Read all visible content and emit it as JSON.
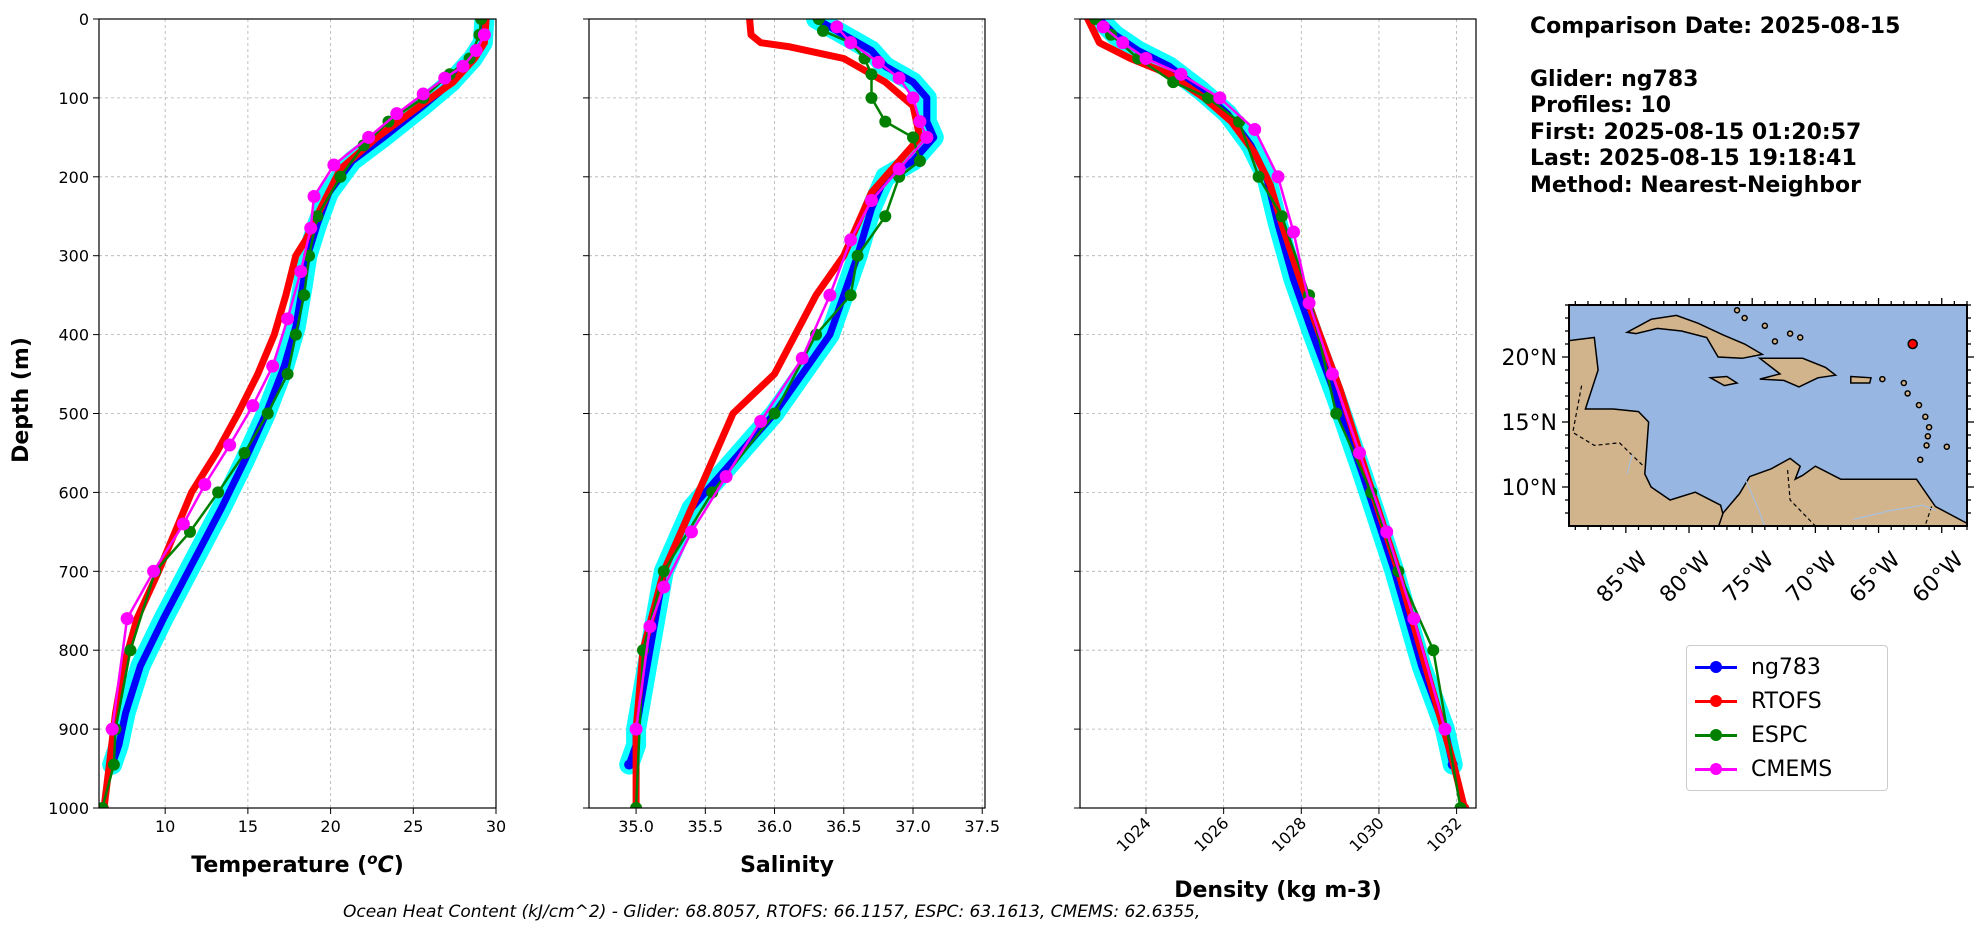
{
  "info": {
    "comparison_date": "Comparison Date: 2025-08-15",
    "glider": "Glider: ng783",
    "profiles": "Profiles: 10",
    "first": "First: 2025-08-15 01:20:57",
    "last": "Last: 2025-08-15 19:18:41",
    "method": "Method: Nearest-Neighbor"
  },
  "caption": "Ocean Heat Content (kJ/cm^2) - Glider: 68.8057,  RTOFS: 66.1157,  ESPC: 63.1613,  CMEMS: 62.6355,",
  "legend": [
    {
      "name": "ng783",
      "color": "#0000ff"
    },
    {
      "name": "RTOFS",
      "color": "#ff0000"
    },
    {
      "name": "ESPC",
      "color": "#008000"
    },
    {
      "name": "CMEMS",
      "color": "#ff00ff"
    }
  ],
  "colors": {
    "glider_spread": "#00ffff",
    "land": "#d2b48c",
    "ocean": "#97b6e1",
    "grid": "#b0b0b0"
  },
  "chart_data": [
    {
      "type": "line",
      "ylabel": "Depth (m)",
      "xlabel": "Temperature (°C)",
      "xlim": [
        6,
        30
      ],
      "ylim": [
        1000,
        0
      ],
      "xticks": [
        "10",
        "15",
        "20",
        "25",
        "30"
      ],
      "yticks": [
        "0",
        "100",
        "200",
        "300",
        "400",
        "500",
        "600",
        "700",
        "800",
        "900",
        "1000"
      ],
      "grid": true,
      "series": [
        {
          "name": "ng783",
          "x": [
            29.3,
            29.2,
            28.6,
            27.3,
            25.6,
            23.2,
            21.3,
            19.9,
            19.2,
            18.6,
            18.3,
            17.9,
            17.2,
            16.1,
            14.8,
            13.4,
            11.4,
            9.9,
            8.5,
            7.6,
            7.2,
            6.8
          ],
          "y": [
            0,
            30,
            50,
            80,
            110,
            150,
            180,
            220,
            260,
            300,
            340,
            390,
            440,
            500,
            560,
            620,
            700,
            760,
            820,
            880,
            920,
            945
          ]
        },
        {
          "name": "RTOFS",
          "x": [
            29.4,
            29.3,
            28.7,
            27.4,
            25.4,
            22.8,
            20.6,
            19.4,
            18.5,
            17.9,
            17.3,
            16.6,
            15.6,
            14.4,
            13.1,
            11.6,
            9.6,
            8.3,
            7.5,
            7.0,
            6.6,
            6.3
          ],
          "y": [
            0,
            30,
            50,
            80,
            110,
            150,
            190,
            240,
            280,
            300,
            350,
            400,
            450,
            500,
            550,
            600,
            700,
            760,
            820,
            880,
            950,
            1000
          ]
        },
        {
          "name": "ESPC",
          "x": [
            29.1,
            29.0,
            28.4,
            27.2,
            25.6,
            23.5,
            22.0,
            20.6,
            19.2,
            18.7,
            18.4,
            17.9,
            17.4,
            16.2,
            14.8,
            13.2,
            11.5,
            9.4,
            7.9,
            7.0,
            6.9,
            6.2
          ],
          "y": [
            0,
            20,
            50,
            70,
            100,
            130,
            160,
            200,
            250,
            300,
            350,
            400,
            450,
            500,
            550,
            600,
            650,
            700,
            800,
            900,
            945,
            1000
          ]
        },
        {
          "name": "CMEMS",
          "x": [
            29.3,
            28.8,
            28.0,
            26.9,
            25.6,
            24.0,
            22.3,
            20.2,
            19.0,
            18.8,
            18.2,
            17.4,
            16.5,
            15.3,
            13.9,
            12.4,
            11.1,
            9.3,
            7.7,
            6.8
          ],
          "y": [
            20,
            40,
            60,
            75,
            95,
            120,
            150,
            185,
            225,
            265,
            320,
            380,
            440,
            490,
            540,
            590,
            640,
            700,
            760,
            900
          ]
        }
      ]
    },
    {
      "type": "line",
      "xlabel": "Salinity",
      "xlim": [
        34.66,
        37.52
      ],
      "ylim": [
        1000,
        0
      ],
      "xticks": [
        "35.0",
        "35.5",
        "36.0",
        "36.5",
        "37.0",
        "37.5"
      ],
      "grid": true,
      "series": [
        {
          "name": "ng783",
          "x": [
            36.3,
            36.5,
            36.7,
            36.8,
            37.0,
            37.1,
            37.1,
            37.15,
            37.0,
            36.8,
            36.7,
            36.6,
            36.5,
            36.4,
            36.2,
            36.0,
            35.7,
            35.4,
            35.2,
            35.1,
            35.05,
            35.0,
            35.0,
            34.95
          ],
          "y": [
            0,
            20,
            40,
            60,
            80,
            100,
            130,
            150,
            180,
            200,
            240,
            300,
            350,
            400,
            450,
            500,
            560,
            620,
            700,
            800,
            850,
            900,
            920,
            945
          ]
        },
        {
          "name": "RTOFS",
          "x": [
            35.82,
            35.83,
            35.9,
            36.1,
            36.5,
            36.8,
            37.0,
            37.05,
            36.9,
            36.7,
            36.5,
            36.3,
            36.0,
            35.7,
            35.45,
            35.2,
            35.05,
            35.0,
            35.0
          ],
          "y": [
            0,
            20,
            30,
            35,
            50,
            80,
            110,
            150,
            180,
            220,
            300,
            350,
            450,
            500,
            600,
            700,
            800,
            900,
            1000
          ]
        },
        {
          "name": "ESPC",
          "x": [
            36.32,
            36.35,
            36.55,
            36.65,
            36.7,
            36.7,
            36.8,
            37.0,
            37.05,
            36.9,
            36.8,
            36.6,
            36.55,
            36.3,
            36.0,
            35.55,
            35.2,
            35.05,
            35.0
          ],
          "y": [
            0,
            15,
            30,
            50,
            70,
            100,
            130,
            150,
            180,
            200,
            250,
            300,
            350,
            400,
            500,
            600,
            700,
            800,
            1000
          ]
        },
        {
          "name": "CMEMS",
          "x": [
            36.45,
            36.55,
            36.75,
            36.9,
            37.0,
            37.05,
            37.1,
            36.9,
            36.7,
            36.55,
            36.4,
            36.2,
            35.9,
            35.65,
            35.4,
            35.2,
            35.1,
            35.0
          ],
          "y": [
            10,
            30,
            55,
            75,
            100,
            130,
            150,
            190,
            230,
            280,
            350,
            430,
            510,
            580,
            650,
            720,
            770,
            900
          ]
        }
      ]
    },
    {
      "type": "line",
      "xlabel": "Density (kg m-3)",
      "xlim": [
        1022.3,
        1032.5
      ],
      "ylim": [
        1000,
        0
      ],
      "xticks": [
        "1024",
        "1026",
        "1028",
        "1030",
        "1032"
      ],
      "grid": true,
      "series": [
        {
          "name": "ng783",
          "x": [
            1022.8,
            1023.2,
            1023.8,
            1024.6,
            1025.4,
            1026.1,
            1026.7,
            1027.1,
            1027.4,
            1027.8,
            1028.3,
            1028.9,
            1029.6,
            1030.4,
            1031.1,
            1031.7,
            1031.9
          ],
          "y": [
            0,
            20,
            40,
            60,
            90,
            120,
            160,
            200,
            260,
            330,
            400,
            480,
            580,
            700,
            820,
            900,
            945
          ]
        },
        {
          "name": "RTOFS",
          "x": [
            1022.5,
            1022.8,
            1023.6,
            1024.6,
            1025.5,
            1026.2,
            1026.8,
            1027.2,
            1027.5,
            1027.9,
            1028.4,
            1029.0,
            1029.7,
            1030.5,
            1031.2,
            1031.9,
            1032.2
          ],
          "y": [
            0,
            30,
            50,
            70,
            100,
            130,
            170,
            210,
            260,
            320,
            390,
            470,
            580,
            700,
            820,
            940,
            1000
          ]
        },
        {
          "name": "ESPC",
          "x": [
            1022.7,
            1023.1,
            1023.8,
            1024.7,
            1025.6,
            1026.4,
            1026.9,
            1027.5,
            1028.2,
            1028.9,
            1029.8,
            1030.5,
            1031.4,
            1032.1
          ],
          "y": [
            0,
            20,
            50,
            80,
            100,
            130,
            200,
            250,
            350,
            500,
            600,
            700,
            800,
            1000
          ]
        },
        {
          "name": "CMEMS",
          "x": [
            1022.9,
            1023.4,
            1024.0,
            1024.9,
            1025.9,
            1026.8,
            1027.4,
            1027.8,
            1028.2,
            1028.8,
            1029.5,
            1030.2,
            1030.9,
            1031.7
          ],
          "y": [
            10,
            30,
            50,
            70,
            100,
            140,
            200,
            270,
            360,
            450,
            550,
            650,
            760,
            900
          ]
        }
      ]
    }
  ],
  "map": {
    "lat_ticks": [
      "20°N",
      "15°N",
      "10°N"
    ],
    "lon_ticks": [
      "85°W",
      "80°W",
      "75°W",
      "70°W",
      "65°W",
      "60°W"
    ],
    "marker": {
      "lon": -62.3,
      "lat": 21.0
    }
  }
}
